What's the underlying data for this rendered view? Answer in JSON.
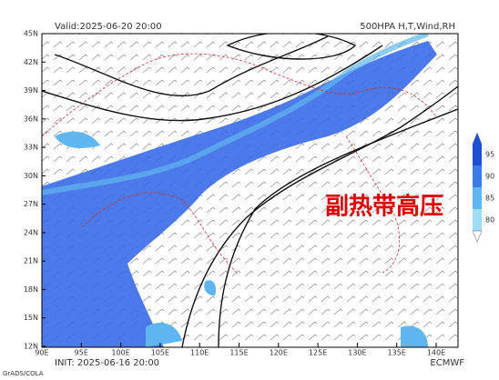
{
  "header": {
    "valid": "Valid:2025-06-20 20:00",
    "product": "500HPA H,T,Wind,RH"
  },
  "annotation": "副热带高压",
  "map": {
    "lat_labels": [
      "45N",
      "42N",
      "39N",
      "36N",
      "33N",
      "30N",
      "27N",
      "24N",
      "21N",
      "18N",
      "15N",
      "12N"
    ],
    "lon_labels": [
      "90E",
      "95E",
      "100E",
      "105E",
      "110E",
      "115E",
      "120E",
      "125E",
      "130E",
      "135E",
      "140E"
    ]
  },
  "colorbar": {
    "labels": [
      95,
      90,
      85,
      80
    ]
  },
  "footer": {
    "init": "INIT: 2025-06-16 20:00",
    "model": "ECMWF",
    "credit": "GrADS/COLA"
  }
}
